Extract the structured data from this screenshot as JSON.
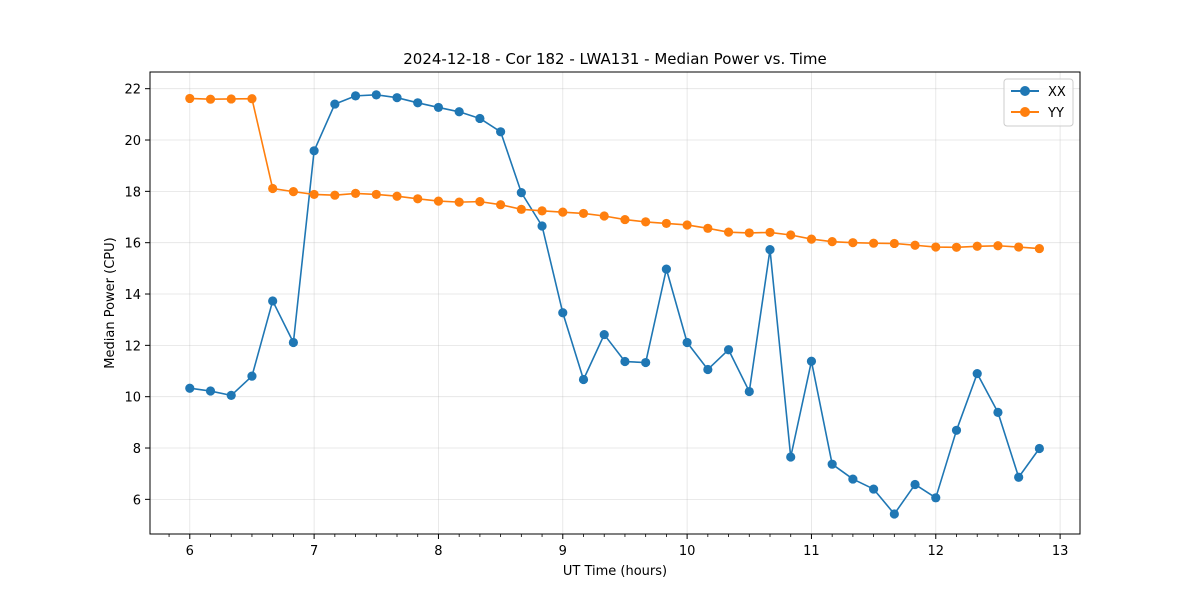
{
  "chart_data": {
    "type": "line",
    "title": "2024-12-18 - Cor 182 - LWA131 - Median Power vs. Time",
    "xlabel": "UT Time (hours)",
    "ylabel": "Median Power (CPU)",
    "xlim": [
      5.68,
      13.16
    ],
    "ylim": [
      4.65,
      22.65
    ],
    "xticks": [
      6,
      7,
      8,
      9,
      10,
      11,
      12,
      13
    ],
    "yticks": [
      6,
      8,
      10,
      12,
      14,
      16,
      18,
      20,
      22
    ],
    "grid": true,
    "legend_position": "top-right",
    "x": [
      6.0,
      6.1667,
      6.3333,
      6.5,
      6.6667,
      6.8333,
      7.0,
      7.1667,
      7.3333,
      7.5,
      7.6667,
      7.8333,
      8.0,
      8.1667,
      8.3333,
      8.5,
      8.6667,
      8.8333,
      9.0,
      9.1667,
      9.3333,
      9.5,
      9.6667,
      9.8333,
      10.0,
      10.1667,
      10.3333,
      10.5,
      10.6667,
      10.8333,
      11.0,
      11.1667,
      11.3333,
      11.5,
      11.6667,
      11.8333,
      12.0,
      12.1667,
      12.3333,
      12.5,
      12.6667,
      12.8333
    ],
    "series": [
      {
        "name": "XX",
        "color": "#1f77b4",
        "values": [
          10.33,
          10.22,
          10.05,
          10.8,
          13.73,
          12.11,
          19.58,
          21.4,
          21.72,
          21.76,
          21.65,
          21.45,
          21.27,
          21.1,
          20.84,
          20.32,
          17.95,
          16.65,
          13.27,
          10.67,
          12.42,
          11.37,
          11.33,
          14.97,
          12.11,
          11.06,
          11.83,
          10.2,
          15.73,
          7.65,
          11.38,
          7.37,
          6.79,
          6.4,
          5.43,
          6.58,
          6.06,
          8.69,
          10.9,
          9.39,
          6.86,
          7.98
        ]
      },
      {
        "name": "YY",
        "color": "#ff7f0e",
        "values": [
          21.62,
          21.59,
          21.6,
          21.61,
          18.11,
          17.99,
          17.88,
          17.85,
          17.92,
          17.88,
          17.81,
          17.71,
          17.62,
          17.58,
          17.6,
          17.48,
          17.3,
          17.24,
          17.19,
          17.14,
          17.04,
          16.9,
          16.81,
          16.75,
          16.69,
          16.56,
          16.41,
          16.38,
          16.4,
          16.3,
          16.14,
          16.04,
          16.0,
          15.98,
          15.97,
          15.9,
          15.83,
          15.82,
          15.86,
          15.88,
          15.83,
          15.77
        ]
      }
    ]
  }
}
